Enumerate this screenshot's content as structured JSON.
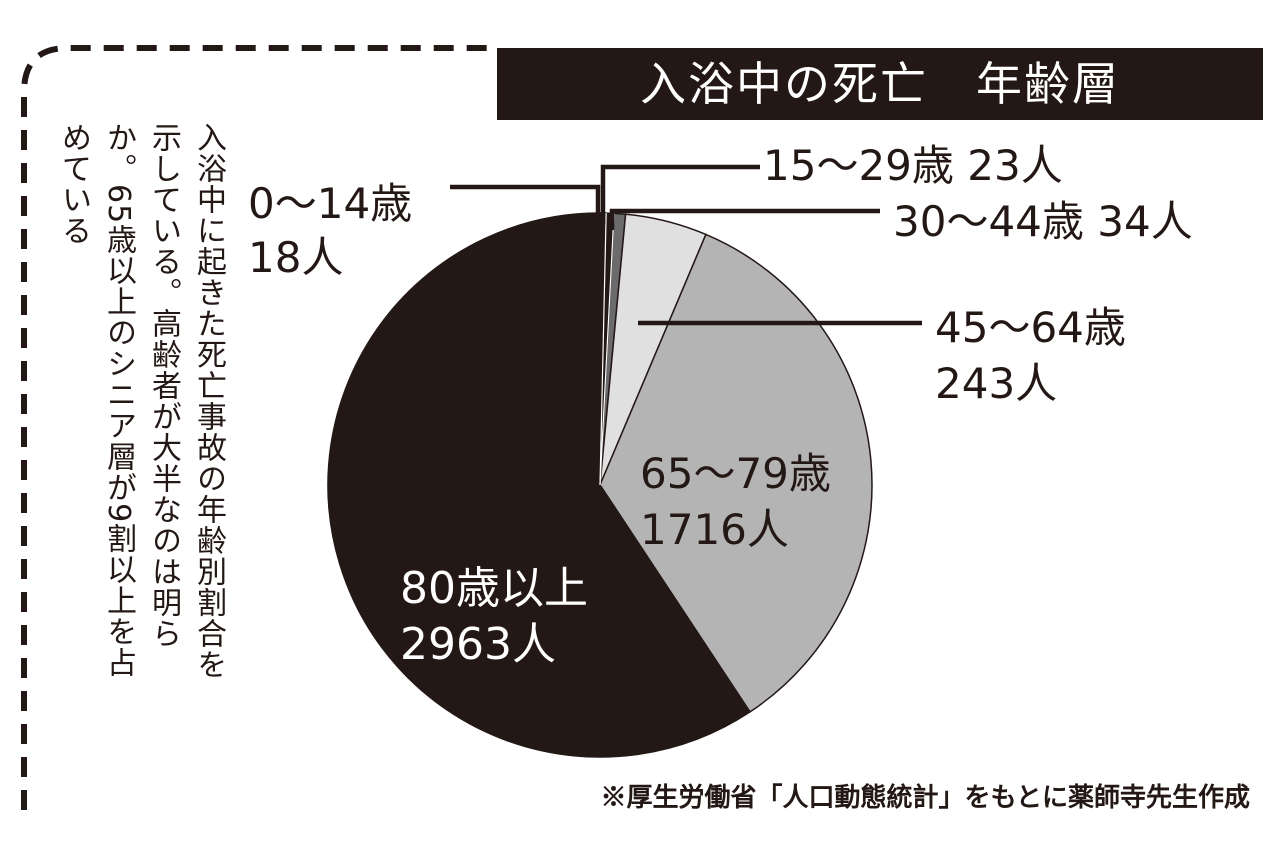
{
  "title": "入浴中の死亡　年齢層",
  "description_lines": [
    "入浴中に起きた死亡事故の年齢別割合を",
    "示している。高齢者が大半なのは明ら",
    "か。65歳以上のシニア層が9割以上を占",
    "めている"
  ],
  "source": "※厚生労働省「人口動態統計」をもとに薬師寺先生作成",
  "colors": {
    "ink": "#231815",
    "age_0_14": "#231815",
    "age_15_29": "#231815",
    "age_30_44": "#6b6b6b",
    "age_45_64": "#e0e0e0",
    "age_65_79": "#b4b4b4",
    "age_80_plus": "#231815"
  },
  "chart_data": {
    "type": "pie",
    "title": "入浴中の死亡　年齢層",
    "start": "top",
    "direction": "clockwise",
    "slices": [
      {
        "id": "age_0_14",
        "label": "0〜14歳",
        "value_label": "18人",
        "value": 18
      },
      {
        "id": "age_15_29",
        "label": "15〜29歳",
        "value_label": "23人",
        "value": 23
      },
      {
        "id": "age_30_44",
        "label": "30〜44歳",
        "value_label": "34人",
        "value": 34
      },
      {
        "id": "age_45_64",
        "label": "45〜64歳",
        "value_label": "243人",
        "value": 243
      },
      {
        "id": "age_65_79",
        "label": "65〜79歳",
        "value_label": "1716人",
        "value": 1716
      },
      {
        "id": "age_80_plus",
        "label": "80歳以上",
        "value_label": "2963人",
        "value": 2963
      }
    ]
  }
}
